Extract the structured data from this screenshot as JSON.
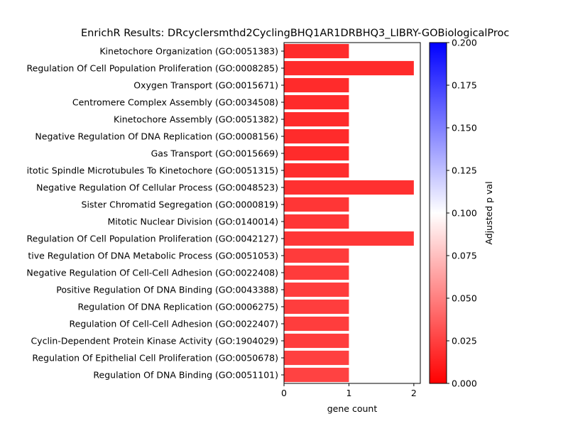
{
  "chart_data": {
    "type": "bar",
    "orientation": "horizontal",
    "title": "EnrichR Results: DRcyclersmthd2CyclingBHQ1AR1DRBHQ3_LIBRY-GOBiologicalProc",
    "xlabel": "gene count",
    "xlim": [
      0,
      2.1
    ],
    "xticks": [
      "0",
      "1",
      "2"
    ],
    "categories": [
      "Kinetochore Organization (GO:0051383)",
      "Regulation Of Cell Population Proliferation (GO:0008285)",
      "Oxygen Transport (GO:0015671)",
      "Centromere Complex Assembly (GO:0034508)",
      "Kinetochore Assembly (GO:0051382)",
      "Negative Regulation Of DNA Replication (GO:0008156)",
      "Gas Transport (GO:0015669)",
      "itotic Spindle Microtubules To Kinetochore (GO:0051315)",
      "Negative Regulation Of Cellular Process (GO:0048523)",
      "Sister Chromatid Segregation (GO:0000819)",
      "Mitotic Nuclear Division (GO:0140014)",
      "Regulation Of Cell Population Proliferation (GO:0042127)",
      "tive Regulation Of DNA Metabolic Process (GO:0051053)",
      "Negative Regulation Of Cell-Cell Adhesion (GO:0022408)",
      "Positive Regulation Of DNA Binding (GO:0043388)",
      "Regulation Of DNA Replication (GO:0006275)",
      "Regulation Of Cell-Cell Adhesion (GO:0022407)",
      "Cyclin-Dependent Protein Kinase Activity (GO:1904029)",
      "Regulation Of Epithelial Cell Proliferation (GO:0050678)",
      "Regulation Of DNA Binding (GO:0051101)"
    ],
    "values": [
      1,
      2,
      1,
      1,
      1,
      1,
      1,
      1,
      2,
      1,
      1,
      2,
      1,
      1,
      1,
      1,
      1,
      1,
      1,
      1
    ],
    "adjusted_p": [
      0.017,
      0.017,
      0.017,
      0.017,
      0.017,
      0.017,
      0.017,
      0.018,
      0.019,
      0.021,
      0.021,
      0.021,
      0.023,
      0.023,
      0.024,
      0.024,
      0.024,
      0.024,
      0.025,
      0.026
    ],
    "colorbar": {
      "label": "Adjusted p val",
      "range": [
        0,
        0.2
      ],
      "ticks": [
        "0.000",
        "0.025",
        "0.050",
        "0.075",
        "0.100",
        "0.125",
        "0.150",
        "0.175",
        "0.200"
      ],
      "colormap": "bwr_r",
      "colors": {
        "low": "#ff0000",
        "mid": "#ffffff",
        "high": "#0000ff"
      }
    },
    "grid": false,
    "legend": "none"
  }
}
